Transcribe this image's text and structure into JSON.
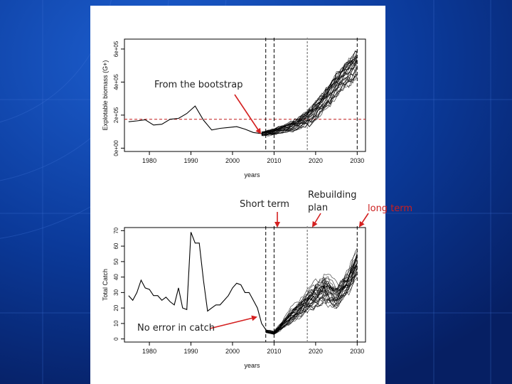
{
  "colors": {
    "slide_background": "#0b3a9a",
    "panel": "#ffffff",
    "arrow": "#d42020",
    "reference_line": "#c01818",
    "series": "#000000",
    "vline_dark": "#000000",
    "vline_grey": "#8c8c8c"
  },
  "annotations": {
    "bootstrap": "From the bootstrap",
    "short_term": "Short term",
    "rebuilding_line1": "Rebuilding",
    "rebuilding_line2": "plan",
    "long_term": "long term",
    "no_error": "No error in catch"
  },
  "chart_data": [
    {
      "type": "line",
      "title": "",
      "xlabel": "years",
      "ylabel": "Explotable biomass (G+)",
      "xlim": [
        1974,
        2032
      ],
      "ylim": [
        -20000,
        660000
      ],
      "xticks": [
        1980,
        1990,
        2000,
        2010,
        2020,
        2030
      ],
      "yticks": [
        0,
        200000,
        400000,
        600000
      ],
      "ytick_labels": [
        "0e+00",
        "2e+05",
        "4e+05",
        "6e+05"
      ],
      "grid": false,
      "reference_line_y": 175000,
      "vlines_dashed": [
        2008,
        2010,
        2030
      ],
      "vlines_grey_dashed": [
        2018
      ],
      "history": {
        "x": [
          1975,
          1977,
          1979,
          1981,
          1983,
          1985,
          1987,
          1989,
          1991,
          1993,
          1995,
          1997,
          1999,
          2001,
          2003,
          2005,
          2007
        ],
        "y": [
          160000,
          165000,
          172000,
          140000,
          145000,
          175000,
          180000,
          210000,
          255000,
          170000,
          110000,
          120000,
          125000,
          130000,
          115000,
          95000,
          88000
        ]
      },
      "projection": {
        "x": [
          2007,
          2010,
          2013,
          2016,
          2019,
          2022,
          2025,
          2028,
          2030
        ],
        "median": [
          85000,
          100000,
          120000,
          150000,
          200000,
          280000,
          380000,
          460000,
          510000
        ],
        "n_runs": 30,
        "spread": [
          12000,
          18000,
          25000,
          35000,
          50000,
          60000,
          70000,
          75000,
          80000
        ]
      }
    },
    {
      "type": "line",
      "title": "",
      "xlabel": "years",
      "ylabel": "Total Catch",
      "xlim": [
        1974,
        2032
      ],
      "ylim": [
        -2,
        72
      ],
      "xticks": [
        1980,
        1990,
        2000,
        2010,
        2020,
        2030
      ],
      "yticks": [
        0,
        10,
        20,
        30,
        40,
        50,
        60,
        70
      ],
      "grid": false,
      "vlines_dashed": [
        2008,
        2010,
        2030
      ],
      "vlines_grey_dashed": [
        2018
      ],
      "history": {
        "x": [
          1975,
          1976,
          1977,
          1978,
          1979,
          1980,
          1981,
          1982,
          1983,
          1984,
          1985,
          1986,
          1987,
          1988,
          1989,
          1990,
          1991,
          1992,
          1993,
          1994,
          1995,
          1996,
          1997,
          1998,
          1999,
          2000,
          2001,
          2002,
          2003,
          2004,
          2005,
          2006,
          2007,
          2008
        ],
        "y": [
          28,
          25,
          30,
          38,
          33,
          32,
          28,
          28,
          25,
          27,
          24,
          22,
          33,
          20,
          19,
          69,
          62,
          62,
          38,
          18,
          20,
          22,
          22,
          25,
          28,
          33,
          36,
          35,
          30,
          30,
          25,
          20,
          10,
          6
        ]
      },
      "projection": {
        "x": [
          2008,
          2010,
          2013,
          2016,
          2019,
          2022,
          2025,
          2028,
          2030
        ],
        "median": [
          5,
          4,
          12,
          20,
          27,
          33,
          28,
          38,
          50
        ],
        "n_runs": 30,
        "spread": [
          1,
          1,
          4,
          6,
          8,
          10,
          8,
          8,
          9
        ]
      }
    }
  ]
}
